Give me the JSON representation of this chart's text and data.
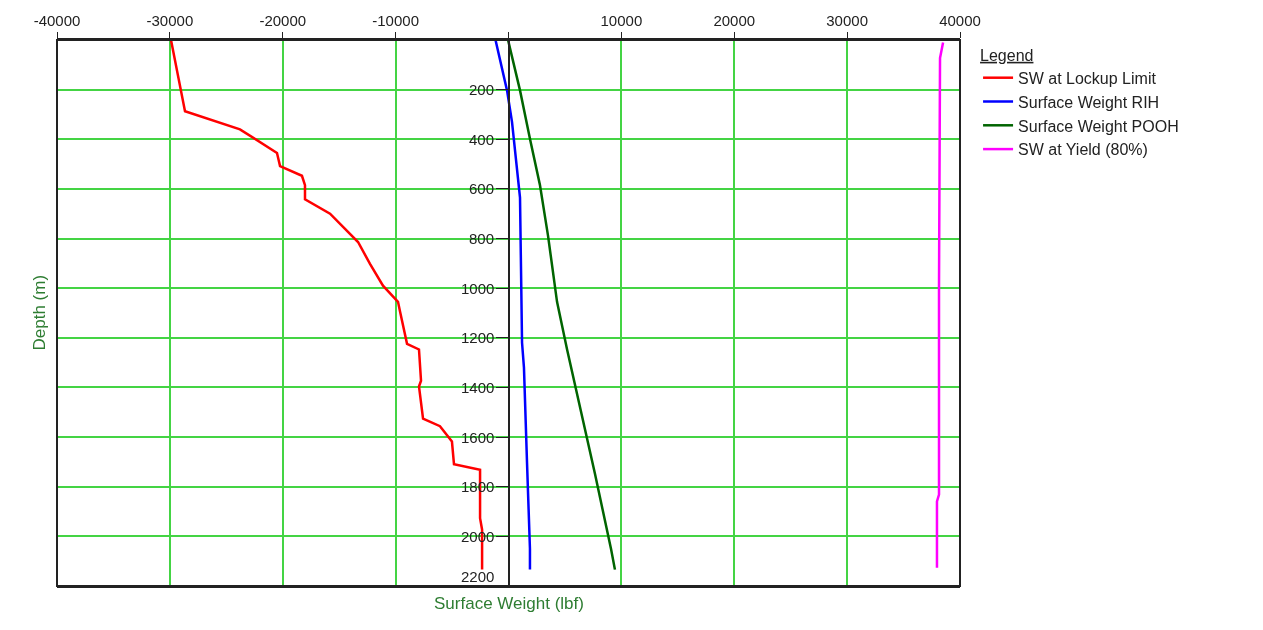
{
  "chart_data": {
    "type": "line",
    "xlabel": "Surface Weight (lbf)",
    "ylabel": "Depth (m)",
    "legend_title": "Legend",
    "xlim": [
      -40000,
      40000
    ],
    "ylim": [
      2200,
      0
    ],
    "xticks": [
      -40000,
      -30000,
      -20000,
      -10000,
      {
        "value": 0,
        "label": null
      },
      10000,
      20000,
      30000,
      40000
    ],
    "yticks": [
      {
        "value": 0,
        "label": null
      },
      200,
      400,
      600,
      800,
      1000,
      1200,
      1400,
      1600,
      1800,
      2000,
      2200
    ],
    "grid": true,
    "legend": "top right",
    "series": [
      {
        "name": "SW at Lockup Limit",
        "color": "#ff0000",
        "x": [
          -29900,
          -28660,
          -23790,
          -20510,
          -20240,
          -18300,
          -18030,
          -18030,
          -15810,
          -13330,
          -12270,
          -11120,
          -9790,
          -9610,
          -8990,
          -7930,
          -7750,
          -7930,
          -7570,
          -6070,
          -5010,
          -4830,
          -2520,
          -2520,
          -2340,
          -2340
        ],
        "values": [
          0,
          287,
          360,
          455,
          508,
          547,
          585,
          642,
          700,
          814,
          902,
          990,
          1055,
          1094,
          1224,
          1247,
          1373,
          1396,
          1526,
          1556,
          1618,
          1709,
          1732,
          1927,
          1973,
          2134
        ]
      },
      {
        "name": "Surface Weight RIH",
        "color": "#0000ff",
        "x": [
          -1150,
          -130,
          310,
          1020,
          1200,
          1370,
          1640,
          1900,
          1900
        ],
        "values": [
          0,
          203,
          330,
          635,
          1220,
          1320,
          1702,
          2050,
          2134
        ]
      },
      {
        "name": "Surface Weight POOH",
        "color": "#006400",
        "x": [
          -40,
          1020,
          1900,
          2790,
          3500,
          4300,
          5190,
          7660,
          9080,
          9430
        ],
        "values": [
          0,
          203,
          398,
          585,
          788,
          1055,
          1247,
          1748,
          2050,
          2134
        ]
      },
      {
        "name": "SW at Yield (80%)",
        "color": "#ff00ff",
        "x": [
          38500,
          38230,
          38140,
          38140,
          37960,
          37960
        ],
        "values": [
          10,
          73,
          990,
          1832,
          1859,
          2126
        ]
      }
    ]
  }
}
